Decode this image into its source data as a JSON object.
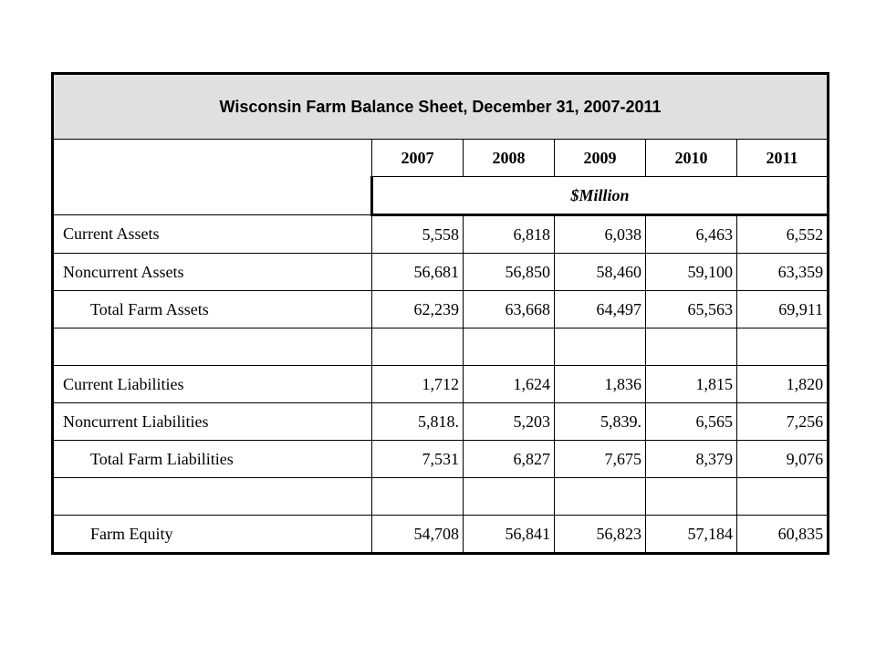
{
  "title": "Wisconsin Farm Balance Sheet, December 31, 2007-2011",
  "years": [
    "2007",
    "2008",
    "2009",
    "2010",
    "2011"
  ],
  "unit": "$Million",
  "rows": [
    {
      "label": "Current Assets",
      "values": [
        "5,558",
        "6,818",
        "6,038",
        "6,463",
        "6,552"
      ]
    },
    {
      "label": "Noncurrent Assets",
      "values": [
        "56,681",
        "56,850",
        "58,460",
        "59,100",
        "63,359"
      ]
    },
    {
      "label": "Total Farm Assets",
      "values": [
        "62,239",
        "63,668",
        "64,497",
        "65,563",
        "69,911"
      ]
    },
    {
      "label": "",
      "values": [
        "",
        "",
        "",
        "",
        ""
      ]
    },
    {
      "label": "Current Liabilities",
      "values": [
        "1,712",
        "1,624",
        "1,836",
        "1,815",
        "1,820"
      ]
    },
    {
      "label": "Noncurrent Liabilities",
      "values": [
        "5,818.",
        "5,203",
        "5,839.",
        "6,565",
        "7,256"
      ]
    },
    {
      "label": "Total Farm Liabilities",
      "values": [
        "7,531",
        "6,827",
        "7,675",
        "8,379",
        "9,076"
      ]
    },
    {
      "label": "",
      "values": [
        "",
        "",
        "",
        "",
        ""
      ]
    },
    {
      "label": "Farm Equity",
      "values": [
        "54,708",
        "56,841",
        "56,823",
        "57,184",
        "60,835"
      ]
    }
  ]
}
